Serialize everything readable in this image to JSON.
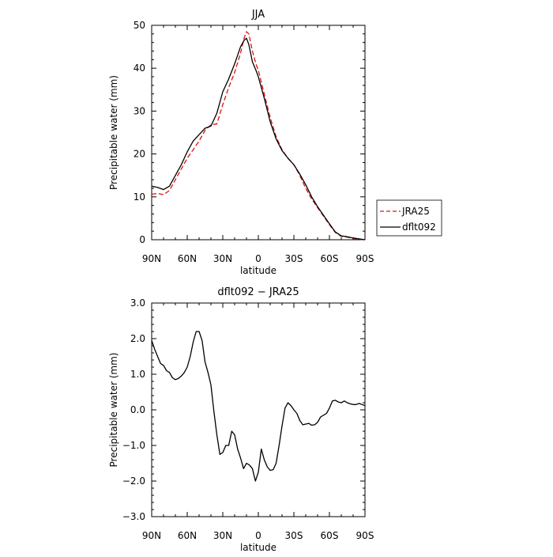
{
  "chart_data": [
    {
      "type": "line",
      "title": "JJA",
      "xlabel": "latitude",
      "ylabel": "Precipitable water  (mm)",
      "xlim": [
        90,
        -90
      ],
      "ylim": [
        0,
        50
      ],
      "x_ticks": [
        "90N",
        "60N",
        "30N",
        "0",
        "30S",
        "60S",
        "90S"
      ],
      "y_ticks": [
        "0",
        "10",
        "20",
        "30",
        "40",
        "50"
      ],
      "grid": false,
      "legend_placement": "right",
      "series": [
        {
          "name": "JRA25",
          "color": "#e01010",
          "dash": "dashed",
          "x": [
            90,
            85,
            80,
            75,
            70,
            65,
            60,
            55,
            50,
            45,
            40,
            35,
            30,
            25,
            20,
            15,
            12,
            10,
            8,
            5,
            2,
            0,
            -5,
            -10,
            -15,
            -20,
            -25,
            -30,
            -35,
            -40,
            -45,
            -50,
            -55,
            -60,
            -65,
            -70,
            -75,
            -80,
            -85,
            -90
          ],
          "y": [
            10.6,
            10.8,
            10.5,
            11.5,
            14,
            16.5,
            19,
            21,
            23,
            25.5,
            26.8,
            27,
            31.5,
            35.5,
            39,
            43.5,
            47,
            48.5,
            48,
            44,
            41,
            39.5,
            34,
            28.5,
            24,
            21,
            19,
            17.5,
            15,
            12,
            9.5,
            7.5,
            5.5,
            3.5,
            1.7,
            0.8,
            0.6,
            0.3,
            0.1,
            0
          ]
        },
        {
          "name": "dflt092",
          "color": "#000000",
          "dash": "solid",
          "x": [
            90,
            85,
            80,
            75,
            70,
            65,
            60,
            55,
            50,
            45,
            40,
            35,
            30,
            25,
            20,
            15,
            12,
            10,
            8,
            5,
            2,
            0,
            -5,
            -10,
            -15,
            -20,
            -25,
            -30,
            -35,
            -40,
            -45,
            -50,
            -55,
            -60,
            -65,
            -70,
            -75,
            -80,
            -85,
            -90
          ],
          "y": [
            12.5,
            12.2,
            11.7,
            12.5,
            15,
            17.5,
            20.5,
            23,
            24.5,
            26,
            26.5,
            29.5,
            34.5,
            37.5,
            41,
            45,
            46.5,
            47,
            45.5,
            41.5,
            39.5,
            38,
            33,
            27.5,
            23.5,
            20.8,
            19,
            17.5,
            15.3,
            12.8,
            10,
            7.7,
            5.7,
            3.7,
            1.8,
            0.9,
            0.7,
            0.4,
            0.2,
            0
          ]
        }
      ]
    },
    {
      "type": "line",
      "title": "dflt092 − JRA25",
      "xlabel": "latitude",
      "ylabel": "Precipitable water  (mm)",
      "xlim": [
        90,
        -90
      ],
      "ylim": [
        -3,
        3
      ],
      "x_ticks": [
        "90N",
        "60N",
        "30N",
        "0",
        "30S",
        "60S",
        "90S"
      ],
      "y_ticks": [
        "−3.0",
        "−2.0",
        "−1.0",
        "0.0",
        "1.0",
        "2.0",
        "3.0"
      ],
      "grid": false,
      "series": [
        {
          "color": "#000000",
          "x": [
            90,
            87.5,
            85,
            82.5,
            80,
            77.5,
            75,
            72.5,
            70,
            67.5,
            65,
            62.5,
            60,
            57.5,
            55,
            52.5,
            50,
            47.5,
            45,
            42.5,
            40,
            37.5,
            35,
            32.5,
            30,
            27.5,
            25,
            22.5,
            20,
            17.5,
            15,
            12.5,
            10,
            7.5,
            5,
            2.5,
            0,
            -2.5,
            -5,
            -7.5,
            -10,
            -12.5,
            -15,
            -17.5,
            -20,
            -22.5,
            -25,
            -27.5,
            -30,
            -32.5,
            -35,
            -37.5,
            -40,
            -42.5,
            -45,
            -47.5,
            -50,
            -52.5,
            -55,
            -57.5,
            -60,
            -62.5,
            -65,
            -67.5,
            -70,
            -72.5,
            -75,
            -77.5,
            -80,
            -82.5,
            -85,
            -87.5,
            -90
          ],
          "y": [
            1.95,
            1.7,
            1.5,
            1.3,
            1.25,
            1.1,
            1.05,
            0.9,
            0.85,
            0.88,
            0.95,
            1.05,
            1.2,
            1.5,
            1.9,
            2.2,
            2.2,
            1.95,
            1.35,
            1.05,
            0.7,
            -0.05,
            -0.7,
            -1.25,
            -1.2,
            -1.0,
            -1.0,
            -0.6,
            -0.7,
            -1.1,
            -1.35,
            -1.65,
            -1.5,
            -1.55,
            -1.65,
            -2.0,
            -1.75,
            -1.1,
            -1.4,
            -1.6,
            -1.7,
            -1.68,
            -1.5,
            -1.0,
            -0.45,
            0.05,
            0.2,
            0.12,
            0.0,
            -0.1,
            -0.3,
            -0.42,
            -0.4,
            -0.38,
            -0.43,
            -0.42,
            -0.35,
            -0.2,
            -0.15,
            -0.1,
            0.05,
            0.25,
            0.27,
            0.22,
            0.2,
            0.25,
            0.2,
            0.17,
            0.15,
            0.15,
            0.18,
            0.15,
            0.12
          ]
        }
      ]
    }
  ]
}
